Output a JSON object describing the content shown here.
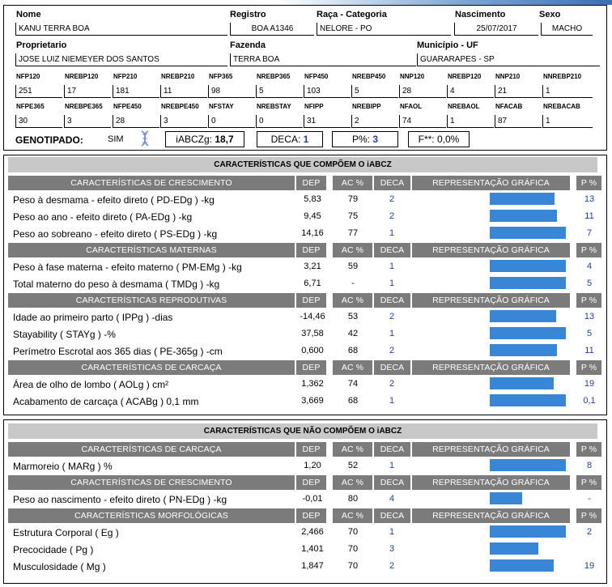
{
  "animal": {
    "nome_label": "Nome",
    "nome": "KANU TERRA BOA",
    "registro_label": "Registro",
    "registro": "BOA A1346",
    "raca_label": "Raça - Categoria",
    "raca": "NELORE - PO",
    "nascimento_label": "Nascimento",
    "nascimento": "25/07/2017",
    "sexo_label": "Sexo",
    "sexo": "MACHO",
    "proprietario_label": "Proprietario",
    "proprietario": "JOSE LUIZ NIEMEYER DOS SANTOS",
    "fazenda_label": "Fazenda",
    "fazenda": "TERRA BOA",
    "municipio_label": "Município - UF",
    "municipio": "GUARARAPES - SP"
  },
  "stats_row1": [
    {
      "label": "NFP120",
      "value": "251"
    },
    {
      "label": "NREBP120",
      "value": "17"
    },
    {
      "label": "NFP210",
      "value": "181"
    },
    {
      "label": "NREBP210",
      "value": "11"
    },
    {
      "label": "NFP365",
      "value": "98"
    },
    {
      "label": "NREBP365",
      "value": "5"
    },
    {
      "label": "NFP450",
      "value": "103"
    },
    {
      "label": "NREBP450",
      "value": "5"
    },
    {
      "label": "NNP120",
      "value": "28"
    },
    {
      "label": "NREBP120",
      "value": "4"
    },
    {
      "label": "NNP210",
      "value": "21"
    },
    {
      "label": "NNREBP210",
      "value": "1"
    }
  ],
  "stats_row2": [
    {
      "label": "NFPE365",
      "value": "30"
    },
    {
      "label": "NREBPE365",
      "value": "3"
    },
    {
      "label": "NFPE450",
      "value": "28"
    },
    {
      "label": "NREBPE450",
      "value": "3"
    },
    {
      "label": "NFSTAY",
      "value": "0"
    },
    {
      "label": "NREBSTAY",
      "value": "0"
    },
    {
      "label": "NFIPP",
      "value": "31"
    },
    {
      "label": "NREBIPP",
      "value": "2"
    },
    {
      "label": "NFAOL",
      "value": "74"
    },
    {
      "label": "NREBAOL",
      "value": "1"
    },
    {
      "label": "NFACAB",
      "value": "87"
    },
    {
      "label": "NREBACAB",
      "value": "1"
    }
  ],
  "genotipado": {
    "label": "GENOTIPADO:",
    "value": "SIM",
    "iabczg_label": "iABCZg:",
    "iabczg": "18,7",
    "deca_label": "DECA:",
    "deca": "1",
    "p_label": "P%:",
    "p": "3",
    "f_label": "F**:",
    "f": "0,0%"
  },
  "headers": {
    "dep": "DEP",
    "ac": "AC %",
    "deca": "DECA",
    "grafica": "REPRESENTAÇÃO GRÁFICA",
    "p": "P %"
  },
  "section1": {
    "title": "CARACTERÍSTICAS QUE COMPÕEM O iABCZ",
    "groups": [
      {
        "title": "CARACTERÍSTICAS DE CRESCIMENTO",
        "rows": [
          {
            "name": "Peso à desmama - efeito direto ( PD-EDg ) -kg",
            "dep": "5,83",
            "ac": "79",
            "deca": "2",
            "p": "13",
            "bar_percent": 0.83
          },
          {
            "name": "Peso ao ano - efeito direto ( PA-EDg ) -kg",
            "dep": "9,45",
            "ac": "75",
            "deca": "2",
            "p": "11",
            "bar_percent": 0.86
          },
          {
            "name": "Peso ao sobreano - efeito direto ( PS-EDg ) -kg",
            "dep": "14,16",
            "ac": "77",
            "deca": "1",
            "p": "7",
            "bar_percent": 0.98
          }
        ]
      },
      {
        "title": "CARACTERÍSTICAS MATERNAS",
        "rows": [
          {
            "name": "Peso à fase materna - efeito materno ( PM-EMg ) -kg",
            "dep": "3,21",
            "ac": "59",
            "deca": "1",
            "p": "4",
            "bar_percent": 0.98
          },
          {
            "name": "Total materno do peso à desmama ( TMDg ) -kg",
            "dep": "6,71",
            "ac": "-",
            "deca": "1",
            "p": "5",
            "bar_percent": 0.98
          }
        ]
      },
      {
        "title": "CARACTERÍSTICAS REPRODUTIVAS",
        "rows": [
          {
            "name": "Idade ao primeiro parto ( IPPg ) -dias",
            "dep": "-14,46",
            "ac": "53",
            "deca": "2",
            "p": "13",
            "bar_percent": 0.85
          },
          {
            "name": "Stayability ( STAYg ) -%",
            "dep": "37,58",
            "ac": "42",
            "deca": "1",
            "p": "5",
            "bar_percent": 0.98
          },
          {
            "name": "Perímetro Escrotal aos 365 dias ( PE-365g ) -cm",
            "dep": "0,600",
            "ac": "68",
            "deca": "2",
            "p": "11",
            "bar_percent": 0.86
          }
        ]
      },
      {
        "title": "CARACTERÍSTICAS DE CARCAÇA",
        "rows": [
          {
            "name": "Área de olho de lombo ( AOLg ) cm²",
            "dep": "1,362",
            "ac": "74",
            "deca": "2",
            "p": "19",
            "bar_percent": 0.82
          },
          {
            "name": "Acabamento de carcaça ( ACABg ) 0,1 mm",
            "dep": "3,669",
            "ac": "68",
            "deca": "1",
            "p": "0,1",
            "bar_percent": 0.98
          }
        ]
      }
    ]
  },
  "section2": {
    "title": "CARACTERÍSTICAS QUE NÃO COMPÕEM O iABCZ",
    "groups": [
      {
        "title": "CARACTERÍSTICAS DE CARCAÇA",
        "rows": [
          {
            "name": "Marmoreio ( MARg ) %",
            "dep": "1,20",
            "ac": "52",
            "deca": "1",
            "p": "8",
            "bar_percent": 0.98
          }
        ]
      },
      {
        "title": "CARACTERÍSTICAS DE CRESCIMENTO",
        "rows": [
          {
            "name": "Peso ao nascimento - efeito direto ( PN-EDg ) -kg",
            "dep": "-0,01",
            "ac": "80",
            "deca": "4",
            "p": "-",
            "bar_percent": 0.42
          }
        ]
      },
      {
        "title": "CARACTERÍSTICAS MORFOLÓGICAS",
        "rows": [
          {
            "name": "Estrutura Corporal ( Eg )",
            "dep": "2,466",
            "ac": "70",
            "deca": "1",
            "p": "2",
            "bar_percent": 0.98
          },
          {
            "name": "Precocidade ( Pg )",
            "dep": "1,401",
            "ac": "70",
            "deca": "3",
            "p": "",
            "bar_percent": 0.62
          },
          {
            "name": "Musculosidade ( Mg )",
            "dep": "1,847",
            "ac": "70",
            "deca": "2",
            "p": "19",
            "bar_percent": 0.82
          }
        ]
      }
    ]
  },
  "colors": {
    "bar": "#3a86d6",
    "group_header": "#7b7b7b",
    "section_title": "#c8c8c8",
    "link": "#1f3fa3"
  }
}
